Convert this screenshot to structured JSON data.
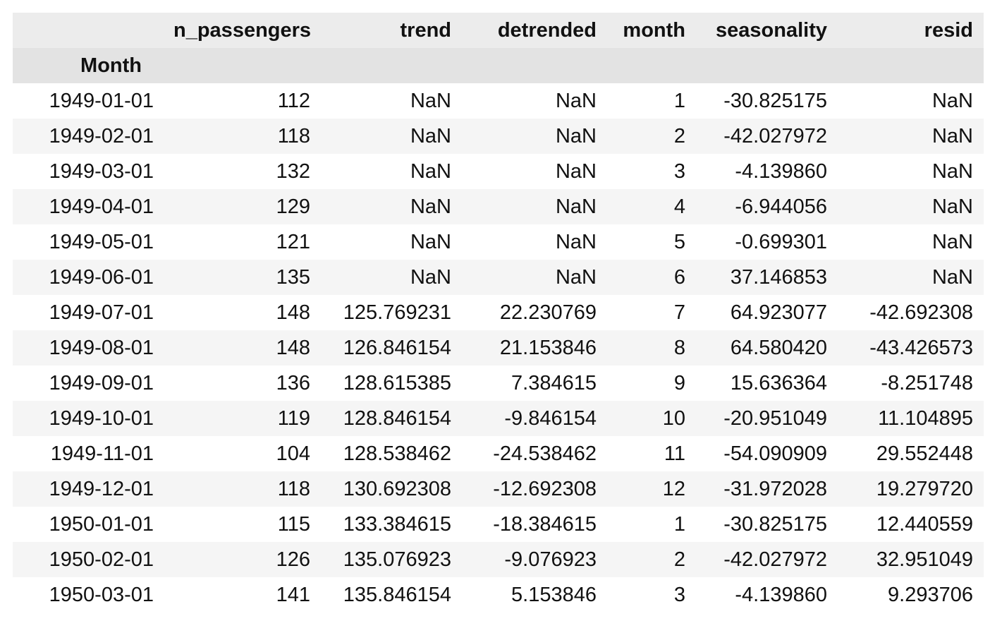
{
  "table": {
    "index_name": "Month",
    "columns": [
      "n_passengers",
      "trend",
      "detrended",
      "month",
      "seasonality",
      "resid"
    ],
    "rows": [
      [
        "1949-01-01",
        "112",
        "NaN",
        "NaN",
        "1",
        "-30.825175",
        "NaN"
      ],
      [
        "1949-02-01",
        "118",
        "NaN",
        "NaN",
        "2",
        "-42.027972",
        "NaN"
      ],
      [
        "1949-03-01",
        "132",
        "NaN",
        "NaN",
        "3",
        "-4.139860",
        "NaN"
      ],
      [
        "1949-04-01",
        "129",
        "NaN",
        "NaN",
        "4",
        "-6.944056",
        "NaN"
      ],
      [
        "1949-05-01",
        "121",
        "NaN",
        "NaN",
        "5",
        "-0.699301",
        "NaN"
      ],
      [
        "1949-06-01",
        "135",
        "NaN",
        "NaN",
        "6",
        "37.146853",
        "NaN"
      ],
      [
        "1949-07-01",
        "148",
        "125.769231",
        "22.230769",
        "7",
        "64.923077",
        "-42.692308"
      ],
      [
        "1949-08-01",
        "148",
        "126.846154",
        "21.153846",
        "8",
        "64.580420",
        "-43.426573"
      ],
      [
        "1949-09-01",
        "136",
        "128.615385",
        "7.384615",
        "9",
        "15.636364",
        "-8.251748"
      ],
      [
        "1949-10-01",
        "119",
        "128.846154",
        "-9.846154",
        "10",
        "-20.951049",
        "11.104895"
      ],
      [
        "1949-11-01",
        "104",
        "128.538462",
        "-24.538462",
        "11",
        "-54.090909",
        "29.552448"
      ],
      [
        "1949-12-01",
        "118",
        "130.692308",
        "-12.692308",
        "12",
        "-31.972028",
        "19.279720"
      ],
      [
        "1950-01-01",
        "115",
        "133.384615",
        "-18.384615",
        "1",
        "-30.825175",
        "12.440559"
      ],
      [
        "1950-02-01",
        "126",
        "135.076923",
        "-9.076923",
        "2",
        "-42.027972",
        "32.951049"
      ],
      [
        "1950-03-01",
        "141",
        "135.846154",
        "5.153846",
        "3",
        "-4.139860",
        "9.293706"
      ]
    ]
  },
  "colors": {
    "column_header_bg": "#ececec",
    "index_name_row_bg": "#e3e3e3",
    "stripe_row_bg": "#f5f5f5",
    "text": "#111111"
  }
}
